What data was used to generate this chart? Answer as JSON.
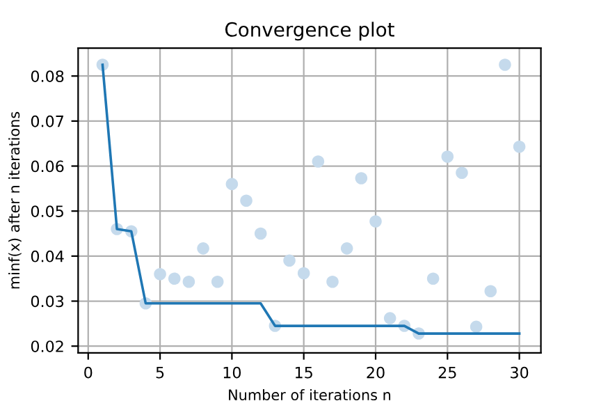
{
  "chart_data": {
    "type": "scatter",
    "title": "Convergence plot",
    "xlabel": "Number of iterations n",
    "ylabel": "minf(x) after n iterations",
    "series": [
      {
        "color": "#c5daec",
        "x": [
          1,
          2,
          3,
          4,
          5,
          6,
          7,
          8,
          9,
          10,
          11,
          12,
          13,
          14,
          15,
          16,
          17,
          18,
          19,
          20,
          21,
          22,
          23,
          24,
          25,
          26,
          27,
          28,
          29,
          30
        ],
        "values": [
          0.0825,
          0.046,
          0.0455,
          0.0295,
          0.036,
          0.035,
          0.0343,
          0.0417,
          0.0343,
          0.056,
          0.0523,
          0.045,
          0.0245,
          0.039,
          0.0362,
          0.061,
          0.0343,
          0.0417,
          0.0573,
          0.0477,
          0.0262,
          0.0245,
          0.0228,
          0.035,
          0.0621,
          0.0585,
          0.0243,
          0.0322,
          0.0825,
          0.0643
        ]
      },
      {
        "type": "line",
        "color": "#1f77b4",
        "x": [
          1,
          2,
          3,
          4,
          5,
          6,
          7,
          8,
          9,
          10,
          11,
          12,
          13,
          14,
          15,
          16,
          17,
          18,
          19,
          20,
          21,
          22,
          23,
          24,
          25,
          26,
          27,
          28,
          29,
          30
        ],
        "values": [
          0.0825,
          0.046,
          0.0455,
          0.0295,
          0.0295,
          0.0295,
          0.0295,
          0.0295,
          0.0295,
          0.0295,
          0.0295,
          0.0295,
          0.0245,
          0.0245,
          0.0245,
          0.0245,
          0.0245,
          0.0245,
          0.0245,
          0.0245,
          0.0245,
          0.0245,
          0.0228,
          0.0228,
          0.0228,
          0.0228,
          0.0228,
          0.0228,
          0.0228,
          0.0228
        ]
      }
    ],
    "xlim": [
      -0.7,
      31.5
    ],
    "xticks": [
      0,
      5,
      10,
      15,
      20,
      25,
      30
    ],
    "ylim": [
      0.0185,
      0.0862
    ],
    "yticks": [
      0.02,
      0.03,
      0.04,
      0.05,
      0.06,
      0.07,
      0.08
    ],
    "grid": true
  }
}
